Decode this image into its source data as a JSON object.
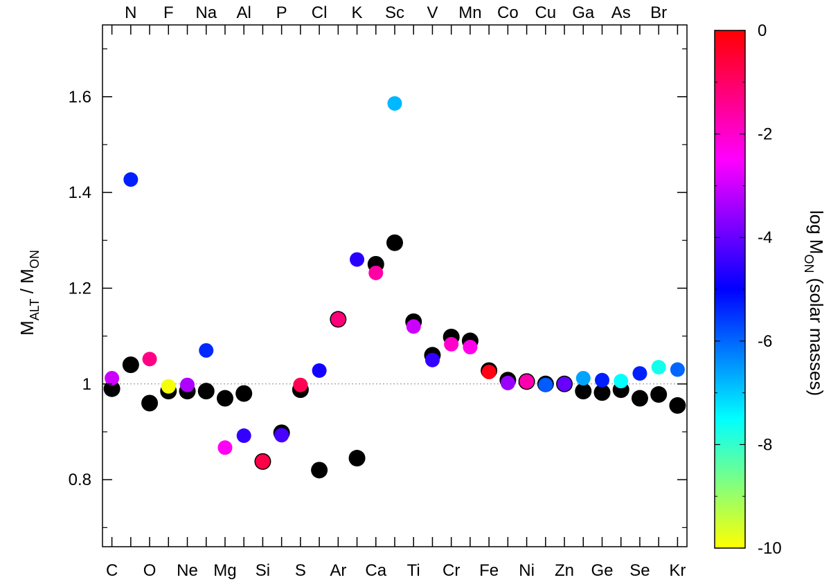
{
  "chart_data": {
    "type": "scatter",
    "xlim": [
      0.5,
      31.5
    ],
    "ylim": [
      0.66,
      1.75
    ],
    "y_ticks": [
      {
        "value": 0.8,
        "label": "0.8"
      },
      {
        "value": 1.0,
        "label": "1"
      },
      {
        "value": 1.2,
        "label": "1.2"
      },
      {
        "value": 1.4,
        "label": "1.4"
      },
      {
        "value": 1.6,
        "label": "1.6"
      }
    ],
    "y_minor_ticks": [
      0.7,
      0.9,
      1.1,
      1.3,
      1.5,
      1.7
    ],
    "reference_line": 1.0,
    "ylabel": {
      "main": "M",
      "sub1": "ALT",
      "mid": " / M",
      "sub2": "ON"
    },
    "elements": [
      "C",
      "N",
      "O",
      "F",
      "Ne",
      "Na",
      "Mg",
      "Al",
      "Si",
      "P",
      "S",
      "Cl",
      "Ar",
      "K",
      "Ca",
      "Sc",
      "Ti",
      "V",
      "Cr",
      "Mn",
      "Fe",
      "Co",
      "Ni",
      "Cu",
      "Zn",
      "Ga",
      "Ge",
      "As",
      "Se",
      "Br",
      "Kr"
    ],
    "bottom_labels_index": [
      1,
      3,
      5,
      7,
      9,
      11,
      13,
      15,
      17,
      19,
      21,
      23,
      25,
      27,
      29,
      31
    ],
    "top_labels_index": [
      2,
      4,
      6,
      8,
      10,
      12,
      14,
      16,
      18,
      20,
      22,
      24,
      26,
      28,
      30
    ],
    "series_black": [
      0.99,
      1.04,
      0.96,
      0.985,
      0.985,
      0.985,
      0.97,
      0.98,
      0.838,
      0.898,
      0.988,
      0.82,
      1.135,
      0.845,
      1.25,
      1.295,
      1.13,
      1.06,
      1.098,
      1.09,
      1.028,
      1.008,
      1.005,
      1.0,
      1.0,
      0.985,
      0.982,
      0.988,
      0.97,
      0.978,
      0.955
    ],
    "series_colored": [
      {
        "y": 1.012,
        "logM": -3.0
      },
      {
        "y": 1.427,
        "logM": -5.3
      },
      {
        "y": 1.052,
        "logM": -1.3
      },
      {
        "y": 0.995,
        "logM": -9.9
      },
      {
        "y": 0.998,
        "logM": -3.3
      },
      {
        "y": 1.07,
        "logM": -5.4
      },
      {
        "y": 0.867,
        "logM": -2.4
      },
      {
        "y": 0.892,
        "logM": -4.5
      },
      {
        "y": 0.838,
        "logM": -0.7
      },
      {
        "y": 0.893,
        "logM": -4.3
      },
      {
        "y": 0.998,
        "logM": -0.8
      },
      {
        "y": 1.028,
        "logM": -4.8
      },
      {
        "y": 1.135,
        "logM": -1.2
      },
      {
        "y": 1.26,
        "logM": -4.6
      },
      {
        "y": 1.232,
        "logM": -1.6
      },
      {
        "y": 1.586,
        "logM": -6.8
      },
      {
        "y": 1.12,
        "logM": -3.0
      },
      {
        "y": 1.05,
        "logM": -4.5
      },
      {
        "y": 1.083,
        "logM": -2.0
      },
      {
        "y": 1.077,
        "logM": -2.3
      },
      {
        "y": 1.025,
        "logM": -0.2
      },
      {
        "y": 1.002,
        "logM": -3.5
      },
      {
        "y": 1.005,
        "logM": -1.7
      },
      {
        "y": 0.998,
        "logM": -5.9
      },
      {
        "y": 1.0,
        "logM": -4.0
      },
      {
        "y": 1.012,
        "logM": -6.6
      },
      {
        "y": 1.008,
        "logM": -5.3
      },
      {
        "y": 1.006,
        "logM": -7.5
      },
      {
        "y": 1.022,
        "logM": -5.3
      },
      {
        "y": 1.035,
        "logM": -7.7
      },
      {
        "y": 1.03,
        "logM": -6.0
      }
    ],
    "colorbar": {
      "range": [
        -10,
        0
      ],
      "ticks": [
        {
          "value": 0,
          "label": "0"
        },
        {
          "value": -2,
          "label": "-2"
        },
        {
          "value": -4,
          "label": "-4"
        },
        {
          "value": -6,
          "label": "-6"
        },
        {
          "value": -8,
          "label": "-8"
        },
        {
          "value": -10,
          "label": "-10"
        }
      ],
      "label": {
        "main": "log M",
        "sub": "ON",
        "rest": " (solar masses)"
      },
      "stops": [
        "#ffff00",
        "#80ff80",
        "#00ffff",
        "#0080ff",
        "#0000ff",
        "#8000ff",
        "#ff00ff",
        "#ff0080",
        "#ff0000"
      ]
    }
  }
}
